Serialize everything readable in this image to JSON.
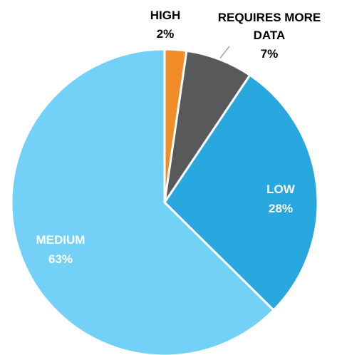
{
  "chart_data": {
    "type": "pie",
    "title": "",
    "start_angle_deg": 0,
    "direction": "clockwise",
    "slices": [
      {
        "label": "HIGH",
        "percent_label": "2%",
        "value": 2.3,
        "color": "#F28C28",
        "label_color": "#000000"
      },
      {
        "label": "REQUIRES MORE DATA",
        "label_lines": [
          "REQUIRES MORE",
          "DATA"
        ],
        "percent_label": "7%",
        "value": 7.1,
        "color": "#58595B",
        "label_color": "#000000"
      },
      {
        "label": "LOW",
        "percent_label": "28%",
        "value": 28.0,
        "color": "#29A8E0",
        "label_color": "#FFFFFF"
      },
      {
        "label": "MEDIUM",
        "percent_label": "63%",
        "value": 62.6,
        "color": "#73D0F7",
        "label_color": "#FFFFFF"
      }
    ],
    "slice_border_color": "#FFFFFF",
    "leader_line_color": "#A6A6A6"
  }
}
